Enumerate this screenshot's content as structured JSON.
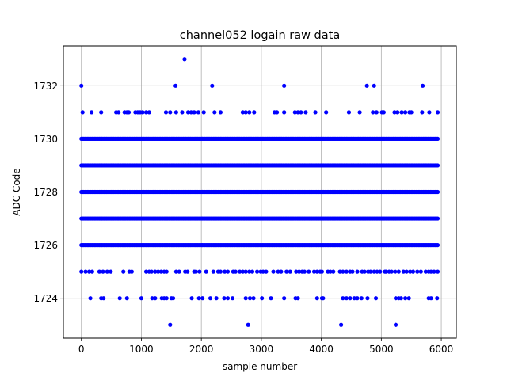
{
  "chart_data": {
    "type": "scatter",
    "title": "channel052 logain raw data",
    "xlabel": "sample number",
    "ylabel": "ADC Code",
    "xlim": [
      -300,
      6250
    ],
    "ylim": [
      1722.5,
      1733.5
    ],
    "xticks": [
      0,
      1000,
      2000,
      3000,
      4000,
      5000,
      6000
    ],
    "yticks": [
      1724,
      1726,
      1728,
      1730,
      1732
    ],
    "grid": true,
    "marker_color": "#0000ff",
    "x_range": [
      0,
      5940
    ],
    "dense_levels": [
      1726,
      1727,
      1728,
      1729,
      1730
    ],
    "sparse_points": [
      {
        "y": 1733,
        "x": [
          1720
        ]
      },
      {
        "y": 1732,
        "x": [
          0,
          1570,
          2180,
          3380,
          4760,
          4880,
          5690
        ]
      },
      {
        "y": 1731,
        "x": [
          20,
          170,
          330,
          580,
          620,
          720,
          760,
          790,
          900,
          940,
          980,
          1020,
          1080,
          1130,
          1410,
          1480,
          1580,
          1680,
          1780,
          1830,
          1880,
          1950,
          2040,
          2220,
          2320,
          2690,
          2740,
          2800,
          2880,
          3220,
          3260,
          3380,
          3560,
          3610,
          3660,
          3740,
          3900,
          4080,
          4460,
          4640,
          4860,
          4920,
          5010,
          5040,
          5220,
          5270,
          5340,
          5400,
          5470,
          5500,
          5680,
          5800,
          5940
        ]
      },
      {
        "y": 1725,
        "x": [
          0,
          70,
          130,
          180,
          300,
          360,
          430,
          490,
          700,
          800,
          840,
          1080,
          1130,
          1170,
          1230,
          1280,
          1330,
          1380,
          1420,
          1580,
          1630,
          1730,
          1770,
          1880,
          1910,
          1970,
          2080,
          2200,
          2280,
          2320,
          2390,
          2440,
          2530,
          2570,
          2640,
          2690,
          2740,
          2800,
          2850,
          2930,
          2990,
          3030,
          3080,
          3200,
          3280,
          3330,
          3420,
          3480,
          3580,
          3630,
          3680,
          3720,
          3790,
          3880,
          3930,
          3980,
          4010,
          4110,
          4150,
          4200,
          4310,
          4360,
          4420,
          4480,
          4520,
          4600,
          4680,
          4720,
          4780,
          4820,
          4880,
          4930,
          4980,
          5060,
          5080,
          5130,
          5170,
          5230,
          5290,
          5370,
          5420,
          5480,
          5530,
          5600,
          5660,
          5740,
          5790,
          5830,
          5880,
          5940
        ]
      },
      {
        "y": 1724,
        "x": [
          150,
          330,
          370,
          640,
          760,
          1000,
          1180,
          1230,
          1340,
          1380,
          1420,
          1500,
          1530,
          1840,
          1960,
          2020,
          2150,
          2250,
          2380,
          2440,
          2520,
          2740,
          2810,
          2870,
          3010,
          3160,
          3380,
          3570,
          3610,
          3930,
          4010,
          4030,
          4360,
          4420,
          4480,
          4550,
          4600,
          4670,
          4770,
          4910,
          5240,
          5290,
          5330,
          5400,
          5460,
          5790,
          5830,
          5930
        ]
      },
      {
        "y": 1723,
        "x": [
          1480,
          2780,
          4330,
          5240
        ]
      }
    ]
  }
}
